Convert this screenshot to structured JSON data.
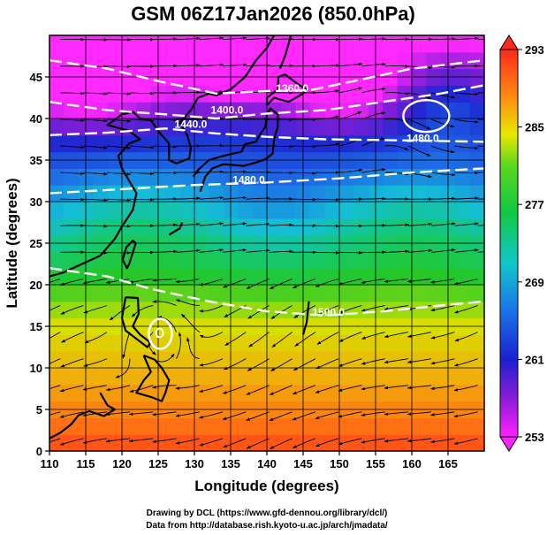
{
  "title": "GSM 06Z17Jan2026 (850.0hPa)",
  "xlabel": "Longitude (degrees)",
  "ylabel": "Latitude  (degrees)",
  "credit_line1": "Drawing by DCL (https://www.gfd-dennou.org/library/dcl/)",
  "credit_line2": "Data from http://database.rish.kyoto-u.ac.jp/arch/jmadata/",
  "x_ticks": [
    "110",
    "115",
    "120",
    "125",
    "130",
    "135",
    "140",
    "145",
    "150",
    "155",
    "160",
    "165"
  ],
  "y_ticks": [
    "0",
    "5",
    "10",
    "15",
    "20",
    "25",
    "30",
    "35",
    "40",
    "45"
  ],
  "colorbar": {
    "labels": [
      "293",
      "285",
      "277",
      "269",
      "261",
      "253"
    ],
    "values": [
      293,
      285,
      277,
      269,
      261,
      253
    ],
    "range": [
      253,
      293
    ]
  },
  "map": {
    "lon_range": [
      110,
      170
    ],
    "lat_range": [
      0,
      50
    ],
    "field": "temperature",
    "contour_labels": [
      {
        "text": "1360.0",
        "lon": 143.5,
        "lat": 43.2
      },
      {
        "text": "1400.0",
        "lon": 134.5,
        "lat": 40.6
      },
      {
        "text": "1440.0",
        "lon": 129.5,
        "lat": 38.9
      },
      {
        "text": "1480.0",
        "lon": 161.5,
        "lat": 37.2
      },
      {
        "text": "1480.0",
        "lon": 137.5,
        "lat": 32.2
      },
      {
        "text": "1500.0",
        "lon": 148.5,
        "lat": 16.3
      }
    ]
  }
}
